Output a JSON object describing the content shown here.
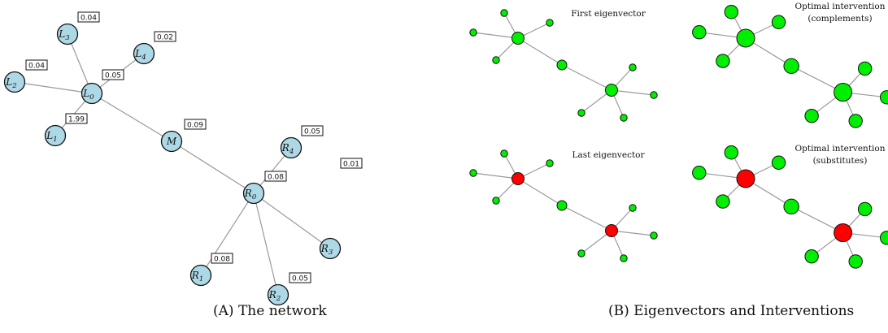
{
  "panel_a": {
    "caption_tag": "(A)",
    "caption_text": "The network",
    "nodes": [
      {
        "id": "L0",
        "letter": "L",
        "sub": "0"
      },
      {
        "id": "L1",
        "letter": "L",
        "sub": "1"
      },
      {
        "id": "L2",
        "letter": "L",
        "sub": "2"
      },
      {
        "id": "L3",
        "letter": "L",
        "sub": "3"
      },
      {
        "id": "L4",
        "letter": "L",
        "sub": "4"
      },
      {
        "id": "M",
        "letter": "M",
        "sub": ""
      },
      {
        "id": "R0",
        "letter": "R",
        "sub": "0"
      },
      {
        "id": "R1",
        "letter": "R",
        "sub": "1"
      },
      {
        "id": "R2",
        "letter": "R",
        "sub": "2"
      },
      {
        "id": "R3",
        "letter": "R",
        "sub": "3"
      },
      {
        "id": "R4",
        "letter": "R",
        "sub": "4"
      }
    ],
    "edges": [
      [
        "L0",
        "L1"
      ],
      [
        "L0",
        "L2"
      ],
      [
        "L0",
        "L3"
      ],
      [
        "L0",
        "L4"
      ],
      [
        "L0",
        "M"
      ],
      [
        "M",
        "R0"
      ],
      [
        "R0",
        "R1"
      ],
      [
        "R0",
        "R2"
      ],
      [
        "R0",
        "R3"
      ],
      [
        "R0",
        "R4"
      ]
    ],
    "weights": [
      {
        "node": "L3",
        "value": "0.04"
      },
      {
        "node": "L4",
        "value": "0.02"
      },
      {
        "node": "L2",
        "value": "0.04"
      },
      {
        "node": "L0",
        "value": "0.05"
      },
      {
        "node": "L1",
        "value": "1.99"
      },
      {
        "node": "M",
        "value": "0.09"
      },
      {
        "node": "R4",
        "value": "0.05"
      },
      {
        "node": "R0",
        "value": "0.08"
      },
      {
        "node": "R3",
        "value": "0.01"
      },
      {
        "node": "R1",
        "value": "0.08"
      },
      {
        "node": "R2",
        "value": "0.05"
      }
    ]
  },
  "panel_b": {
    "caption_tag": "(B)",
    "caption_text": "Eigenvectors and Interventions",
    "colors": {
      "positive": "#00ee00",
      "negative": "#ff0000",
      "edge": "#9a9a9a"
    },
    "edges": [
      [
        "L0",
        "L1"
      ],
      [
        "L0",
        "L2"
      ],
      [
        "L0",
        "L3"
      ],
      [
        "L0",
        "L4"
      ],
      [
        "L0",
        "M"
      ],
      [
        "M",
        "R0"
      ],
      [
        "R0",
        "R1"
      ],
      [
        "R0",
        "R2"
      ],
      [
        "R0",
        "R3"
      ],
      [
        "R0",
        "R4"
      ]
    ],
    "subplots": [
      {
        "key": "first",
        "title_lines": [
          "First eigenvector"
        ],
        "node_sign": {
          "L0": "positive",
          "R0": "positive"
        }
      },
      {
        "key": "complements",
        "title_lines": [
          "Optimal intervention",
          "(complements)"
        ],
        "node_sign": {
          "L0": "positive",
          "R0": "positive"
        }
      },
      {
        "key": "last",
        "title_lines": [
          "Last eigenvector"
        ],
        "node_sign": {
          "L0": "negative",
          "R0": "negative"
        }
      },
      {
        "key": "substitutes",
        "title_lines": [
          "Optimal intervention",
          "(substitutes)"
        ],
        "node_sign": {
          "L0": "negative",
          "R0": "negative"
        }
      }
    ]
  }
}
